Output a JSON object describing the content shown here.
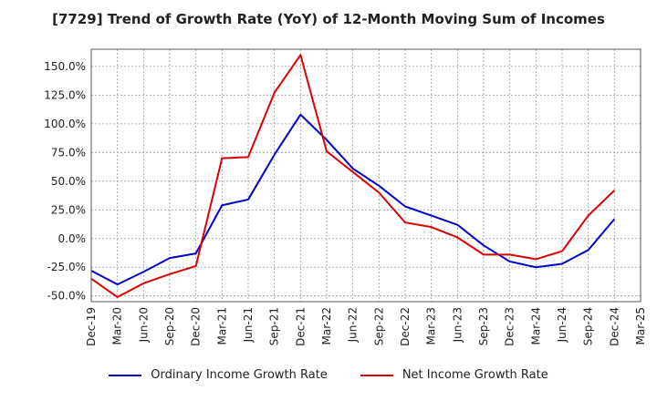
{
  "chart_data": {
    "type": "line",
    "title": "[7729]  Trend of Growth Rate (YoY) of 12-Month Moving Sum of Incomes",
    "xlabel": "",
    "ylabel": "",
    "x": [
      "Dec-19",
      "Mar-20",
      "Jun-20",
      "Sep-20",
      "Dec-20",
      "Mar-21",
      "Jun-21",
      "Sep-21",
      "Dec-21",
      "Mar-22",
      "Jun-22",
      "Sep-22",
      "Dec-22",
      "Mar-23",
      "Jun-23",
      "Sep-23",
      "Dec-23",
      "Mar-24",
      "Jun-24",
      "Sep-24",
      "Dec-24",
      "Mar-25"
    ],
    "ylim": [
      -55,
      165
    ],
    "yticks": [
      -50,
      -25,
      0,
      25,
      50,
      75,
      100,
      125,
      150
    ],
    "ytick_labels": [
      "-50.0%",
      "-25.0%",
      "0.0%",
      "25.0%",
      "50.0%",
      "75.0%",
      "100.0%",
      "125.0%",
      "150.0%"
    ],
    "grid": true,
    "legend_position": "bottom",
    "series": [
      {
        "name": "Ordinary Income Growth Rate",
        "color": "#0000cc",
        "values": [
          -28,
          -40,
          -29,
          -17,
          -13,
          29,
          34,
          73,
          108,
          86,
          61,
          46,
          28,
          20,
          12,
          -6,
          -20,
          -25,
          -22,
          -10,
          17,
          null
        ]
      },
      {
        "name": "Net Income Growth Rate",
        "color": "#dd0000",
        "values": [
          -35,
          -51,
          -39,
          -31,
          -24,
          70,
          71,
          127,
          160,
          76,
          58,
          40,
          14,
          10,
          1,
          -14,
          -14,
          -18,
          -11,
          20,
          42,
          null
        ]
      }
    ]
  }
}
